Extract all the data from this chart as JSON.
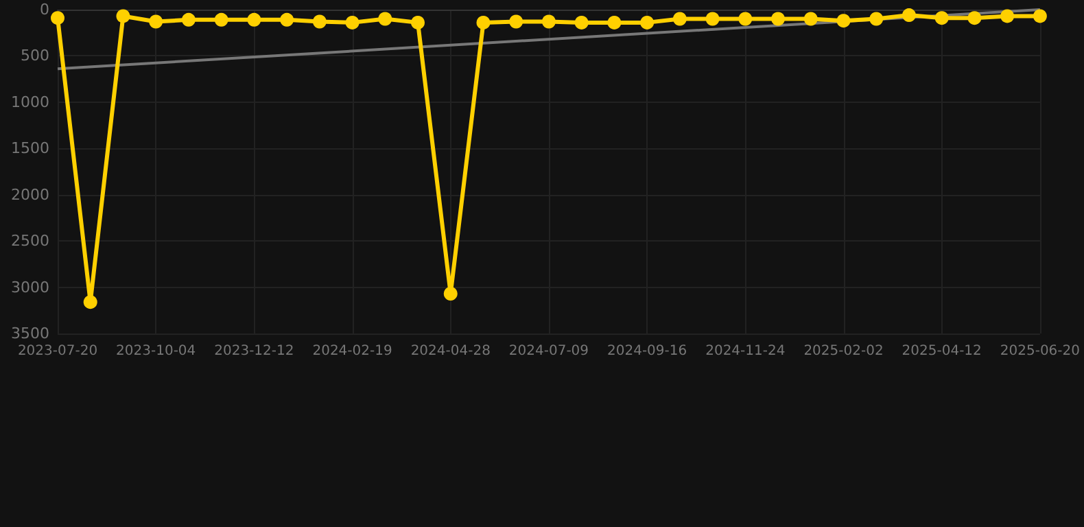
{
  "chart_data": {
    "type": "line",
    "categories": [
      "2023-07-20",
      null,
      null,
      "2023-10-04",
      null,
      null,
      "2023-12-12",
      null,
      null,
      "2024-02-19",
      null,
      null,
      "2024-04-28",
      null,
      null,
      "2024-07-09",
      null,
      null,
      "2024-09-16",
      null,
      null,
      "2024-11-24",
      null,
      null,
      "2025-02-02",
      null,
      null,
      "2025-04-12",
      null,
      null,
      "2025-06-20"
    ],
    "series": [
      {
        "color": "#ffd000",
        "values": [
          90,
          3160,
          70,
          130,
          110,
          110,
          110,
          110,
          130,
          140,
          100,
          140,
          3070,
          140,
          130,
          130,
          140,
          140,
          140,
          100,
          100,
          100,
          100,
          100,
          120,
          100,
          60,
          90,
          90,
          70,
          70
        ]
      },
      {
        "type": "line",
        "color": "#777777",
        "marker": "none",
        "values": [
          640,
          null,
          null,
          null,
          null,
          null,
          null,
          null,
          null,
          null,
          null,
          null,
          null,
          null,
          null,
          null,
          null,
          null,
          null,
          null,
          null,
          null,
          null,
          null,
          null,
          null,
          null,
          null,
          null,
          null,
          0
        ]
      }
    ],
    "ylim": [
      3500,
      0
    ],
    "yticks": [
      0,
      500,
      1000,
      1500,
      2000,
      2500,
      3000,
      3500
    ],
    "grid": true,
    "marker": "circle"
  }
}
